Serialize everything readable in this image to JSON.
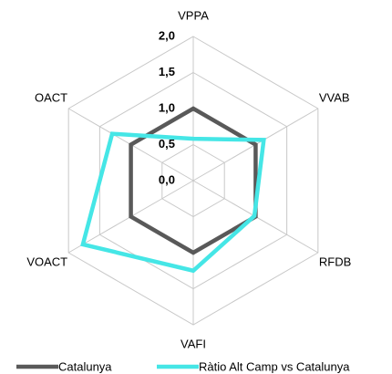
{
  "chart_data": {
    "type": "radar",
    "categories": [
      "VPPA",
      "VVAB",
      "RFDB",
      "VAFI",
      "VOACT",
      "OACT"
    ],
    "series": [
      {
        "name": "Catalunya",
        "color": "#595959",
        "values": [
          1.0,
          1.0,
          1.0,
          1.0,
          1.0,
          1.0
        ]
      },
      {
        "name": "Ràtio Alt Camp vs Catalunya",
        "color": "#45e6e6",
        "values": [
          0.58,
          1.13,
          0.98,
          1.25,
          1.77,
          1.3
        ]
      }
    ],
    "ylim": [
      0,
      2
    ],
    "yticks": [
      {
        "value": 0,
        "label": "0,0"
      },
      {
        "value": 0.5,
        "label": "0,5"
      },
      {
        "value": 1,
        "label": "1,0"
      },
      {
        "value": 1.5,
        "label": "1,5"
      },
      {
        "value": 2,
        "label": "2,0"
      }
    ],
    "grid": true,
    "legend": "bottom"
  }
}
